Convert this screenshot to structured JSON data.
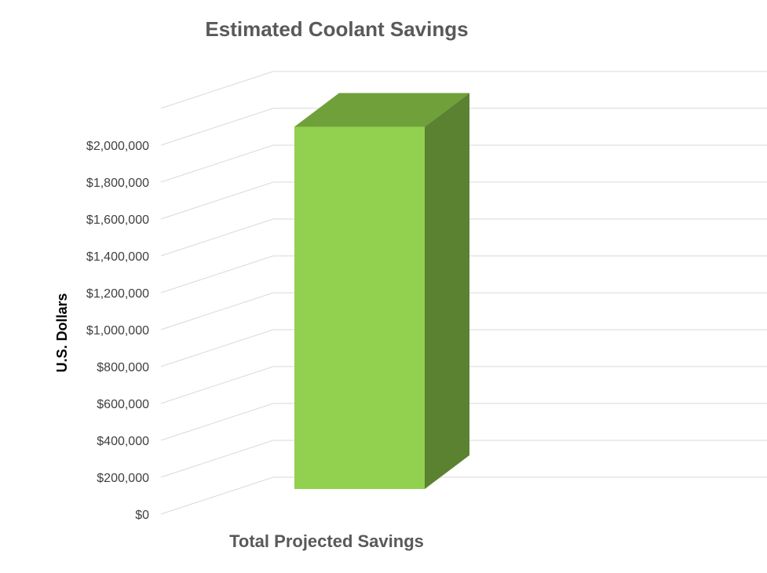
{
  "chart_data": {
    "type": "bar",
    "style": "3d-column",
    "title": "Estimated Coolant Savings",
    "ylabel": "U.S. Dollars",
    "categories": [
      "Total Projected Savings"
    ],
    "values": [
      2100000
    ],
    "ylim": [
      0,
      2000000
    ],
    "yticks": [
      0,
      200000,
      400000,
      600000,
      800000,
      1000000,
      1200000,
      1400000,
      1600000,
      1800000,
      2000000
    ],
    "ytick_labels": [
      "$0",
      "$200,000",
      "$400,000",
      "$600,000",
      "$800,000",
      "$1,000,000",
      "$1,200,000",
      "$1,400,000",
      "$1,600,000",
      "$1,800,000",
      "$2,000,000"
    ],
    "grid": true,
    "legend": "none",
    "colors": {
      "bar_front": "#92d050",
      "bar_side": "#5b8231",
      "bar_top": "#70a03a",
      "grid": "#d9d9d9"
    }
  }
}
